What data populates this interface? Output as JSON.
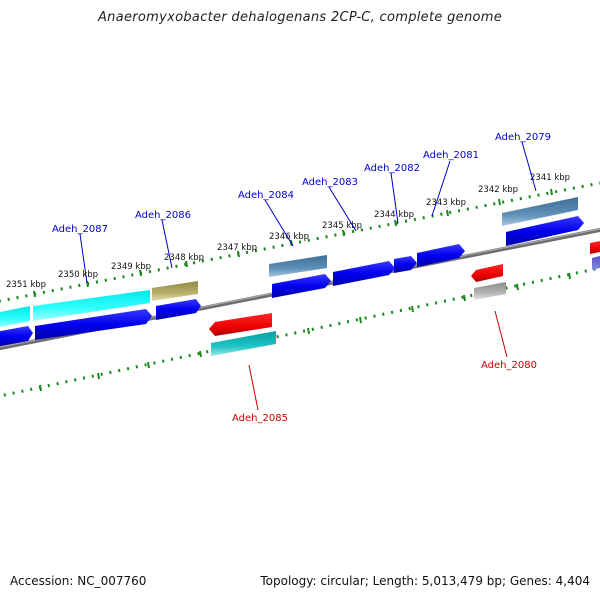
{
  "title": "Anaeromyxobacter dehalogenans 2CP-C, complete genome",
  "footer": {
    "accession": "Accession: NC_007760",
    "summary": "Topology: circular; Length: 5,013,479 bp; Genes: 4,404"
  },
  "colors": {
    "forward_label": "#0000cc",
    "reverse_label": "#cc0000",
    "backbone": "#808080",
    "ticks": "#1a8a1a"
  },
  "scale_labels": [
    "2351 kbp",
    "2350 kbp",
    "2349 kbp",
    "2348 kbp",
    "2347 kbp",
    "2346 kbp",
    "2345 kbp",
    "2344 kbp",
    "2343 kbp",
    "2342 kbp",
    "2341 kbp"
  ],
  "gene_labels": [
    {
      "text": "Adeh_2087",
      "strand": "forward"
    },
    {
      "text": "Adeh_2086",
      "strand": "forward"
    },
    {
      "text": "Adeh_2084",
      "strand": "forward"
    },
    {
      "text": "Adeh_2083",
      "strand": "forward"
    },
    {
      "text": "Adeh_2082",
      "strand": "forward"
    },
    {
      "text": "Adeh_2081",
      "strand": "forward"
    },
    {
      "text": "Adeh_2079",
      "strand": "forward"
    },
    {
      "text": "Adeh_2085",
      "strand": "reverse"
    },
    {
      "text": "Adeh_2080",
      "strand": "reverse"
    }
  ]
}
